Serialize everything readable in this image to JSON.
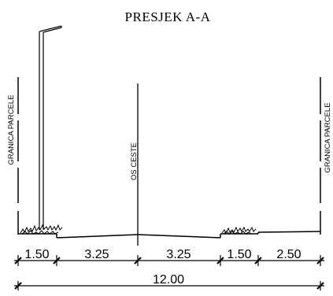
{
  "drawing": {
    "title": "PRESJEK A-A",
    "left_label": "GRANICA PARCELE",
    "right_label": "GRANICA PARCELE",
    "center_label": "OS CESTE",
    "segments": [
      "1.50",
      "3.25",
      "3.25",
      "1.50",
      "2.50"
    ],
    "total": "12.00"
  }
}
